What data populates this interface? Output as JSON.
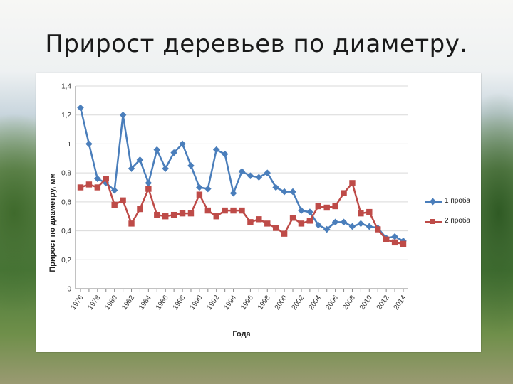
{
  "slide": {
    "title": "Прирост деревьев по диаметру."
  },
  "colors": {
    "series1": "#4a7ebb",
    "series2": "#be4b48",
    "grid": "#d9d9d9",
    "axis": "#868686"
  },
  "chart_data": {
    "type": "line",
    "title": "",
    "xlabel": "Года",
    "ylabel": "Прирост по диаметру, мм",
    "ylim": [
      0,
      1.4
    ],
    "yticks": [
      "0",
      "0,2",
      "0,4",
      "0,6",
      "0,8",
      "1",
      "1,2",
      "1,4"
    ],
    "ytick_values": [
      0,
      0.2,
      0.4,
      0.6,
      0.8,
      1.0,
      1.2,
      1.4
    ],
    "xlim": [
      1976,
      2014
    ],
    "xticks": [
      "1976",
      "1978",
      "1980",
      "1982",
      "1984",
      "1986",
      "1988",
      "1990",
      "1992",
      "1994",
      "1996",
      "1998",
      "2000",
      "2002",
      "2004",
      "2006",
      "2008",
      "2010",
      "2012",
      "2014"
    ],
    "xtick_values": [
      1976,
      1978,
      1980,
      1982,
      1984,
      1986,
      1988,
      1990,
      1992,
      1994,
      1996,
      1998,
      2000,
      2002,
      2004,
      2006,
      2008,
      2010,
      2012,
      2014
    ],
    "grid": "horizontal",
    "legend_position": "right",
    "x": [
      1976,
      1977,
      1978,
      1979,
      1980,
      1981,
      1982,
      1983,
      1984,
      1985,
      1986,
      1987,
      1988,
      1989,
      1990,
      1991,
      1992,
      1993,
      1994,
      1995,
      1996,
      1997,
      1998,
      1999,
      2000,
      2001,
      2002,
      2003,
      2004,
      2005,
      2006,
      2007,
      2008,
      2009,
      2010,
      2011,
      2012,
      2013,
      2014
    ],
    "series": [
      {
        "name": "1 проба",
        "marker": "diamond",
        "values": [
          1.25,
          1.0,
          0.76,
          0.73,
          0.68,
          1.2,
          0.83,
          0.89,
          0.73,
          0.96,
          0.83,
          0.94,
          1.0,
          0.85,
          0.7,
          0.69,
          0.96,
          0.93,
          0.66,
          0.81,
          0.78,
          0.77,
          0.8,
          0.7,
          0.67,
          0.67,
          0.54,
          0.53,
          0.44,
          0.41,
          0.46,
          0.46,
          0.43,
          0.45,
          0.43,
          0.42,
          0.35,
          0.36,
          0.33
        ]
      },
      {
        "name": "2 проба",
        "marker": "square",
        "values": [
          0.7,
          0.72,
          0.7,
          0.76,
          0.58,
          0.61,
          0.45,
          0.55,
          0.69,
          0.51,
          0.5,
          0.51,
          0.52,
          0.52,
          0.65,
          0.54,
          0.5,
          0.54,
          0.54,
          0.54,
          0.46,
          0.48,
          0.45,
          0.42,
          0.38,
          0.49,
          0.45,
          0.47,
          0.57,
          0.56,
          0.57,
          0.66,
          0.73,
          0.52,
          0.53,
          0.41,
          0.34,
          0.32,
          0.31
        ]
      }
    ]
  }
}
